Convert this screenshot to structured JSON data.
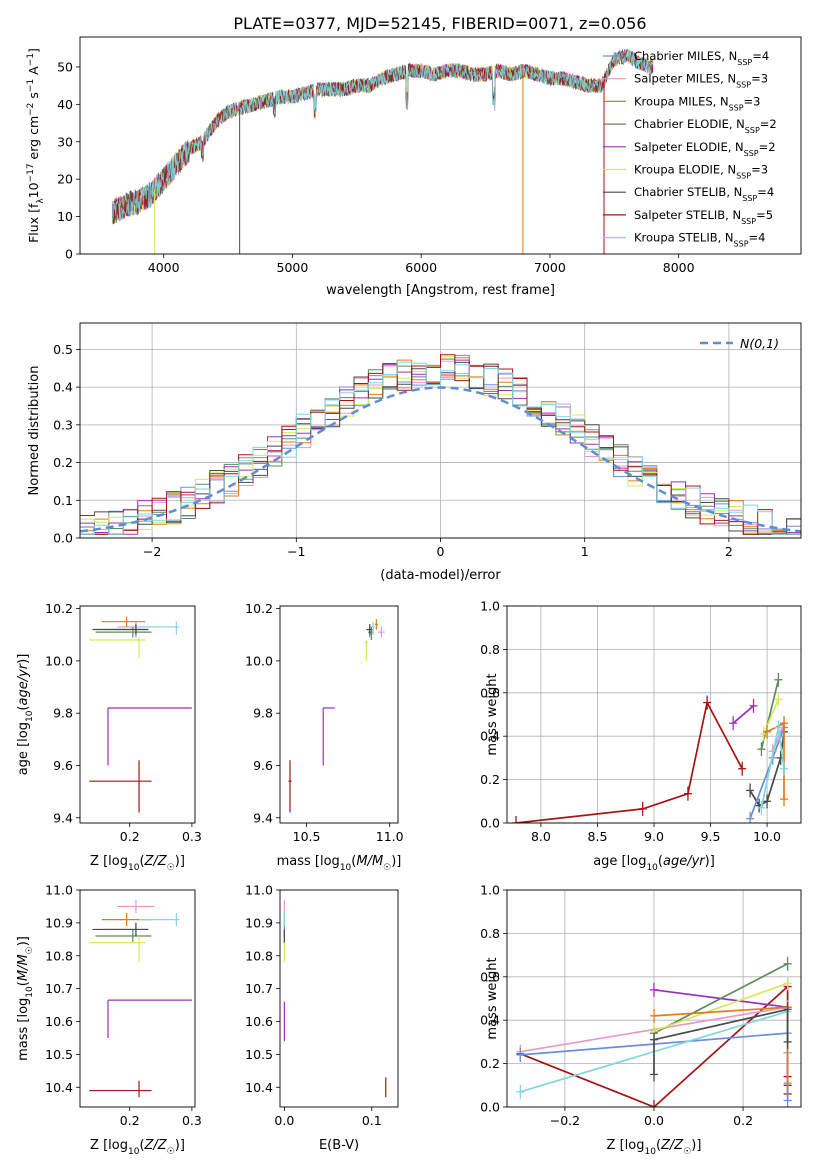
{
  "figure": {
    "title": "PLATE=0377, MJD=52145, FIBERID=0071, z=0.056"
  },
  "colors": {
    "Chabrier MILES": "#6a8fd8",
    "Salpeter MILES": "#e69ac6",
    "Kroupa MILES": "#e07b1a",
    "Chabrier ELODIE": "#5c8a5c",
    "Salpeter ELODIE": "#9b30b8",
    "Kroupa ELODIE": "#d7e85a",
    "Chabrier STELIB": "#4a4a4a",
    "Salpeter STELIB": "#a31515",
    "Kroupa STELIB": "#7fd6e0",
    "normal": "#5b8ed6"
  },
  "chart_data": [
    {
      "type": "line",
      "title": "PLATE=0377, MJD=52145, FIBERID=0071, z=0.056",
      "xlabel": "wavelength [Angstrom, rest frame]",
      "ylabel": "Flux [f",
      "xlim": [
        3350,
        8950
      ],
      "ylim": [
        0,
        58
      ],
      "xticks": [
        4000,
        5000,
        6000,
        7000,
        8000
      ],
      "yticks": [
        0,
        10,
        20,
        30,
        40,
        50
      ],
      "grid": false,
      "legend_position": "right",
      "legend": [
        {
          "name": "Chabrier MILES",
          "nssp": "4"
        },
        {
          "name": "Salpeter MILES",
          "nssp": "3"
        },
        {
          "name": "Kroupa MILES",
          "nssp": "3"
        },
        {
          "name": "Chabrier ELODIE",
          "nssp": "2"
        },
        {
          "name": "Salpeter ELODIE",
          "nssp": "2"
        },
        {
          "name": "Kroupa ELODIE",
          "nssp": "3"
        },
        {
          "name": "Chabrier STELIB",
          "nssp": "4"
        },
        {
          "name": "Salpeter STELIB",
          "nssp": "5"
        },
        {
          "name": "Kroupa STELIB",
          "nssp": "4"
        }
      ],
      "continuum": [
        [
          3600,
          11
        ],
        [
          3700,
          13
        ],
        [
          3800,
          14
        ],
        [
          3900,
          16
        ],
        [
          4000,
          20
        ],
        [
          4100,
          24
        ],
        [
          4200,
          28
        ],
        [
          4300,
          30
        ],
        [
          4400,
          35
        ],
        [
          4500,
          38
        ],
        [
          4600,
          39
        ],
        [
          4700,
          40
        ],
        [
          4800,
          41
        ],
        [
          4900,
          42
        ],
        [
          5000,
          42
        ],
        [
          5100,
          43
        ],
        [
          5200,
          44
        ],
        [
          5300,
          44
        ],
        [
          5400,
          44
        ],
        [
          5500,
          45
        ],
        [
          5600,
          45
        ],
        [
          5700,
          47
        ],
        [
          5800,
          48
        ],
        [
          5900,
          49
        ],
        [
          6000,
          49
        ],
        [
          6100,
          48
        ],
        [
          6200,
          49
        ],
        [
          6300,
          49
        ],
        [
          6400,
          48
        ],
        [
          6500,
          48
        ],
        [
          6600,
          49
        ],
        [
          6700,
          48
        ],
        [
          6800,
          49
        ],
        [
          6900,
          48
        ],
        [
          7000,
          47
        ],
        [
          7100,
          47
        ],
        [
          7200,
          46
        ],
        [
          7300,
          45
        ],
        [
          7400,
          45
        ],
        [
          7500,
          52
        ],
        [
          7600,
          53
        ],
        [
          7700,
          51
        ],
        [
          7800,
          50
        ]
      ],
      "absorption_features": [
        [
          3935,
          34
        ],
        [
          3970,
          32
        ],
        [
          4300,
          26
        ],
        [
          4861,
          38
        ],
        [
          5175,
          38
        ],
        [
          5890,
          40
        ],
        [
          6563,
          40
        ]
      ],
      "spikes_to_zero": [
        3930,
        4590,
        6790,
        7420
      ]
    },
    {
      "type": "step",
      "xlabel": "(data-model)/error",
      "ylabel": "Normed distribution",
      "xlim": [
        -2.5,
        2.5
      ],
      "ylim": [
        0,
        0.57
      ],
      "xticks": [
        -2,
        -1,
        0,
        1,
        2
      ],
      "yticks": [
        0.0,
        0.1,
        0.2,
        0.3,
        0.4,
        0.5
      ],
      "grid": true,
      "legend_position": "top-right",
      "normal_label": "N(0,1)",
      "bin_width": 0.1
    },
    {
      "type": "scatter-errorbar",
      "xlabel": "Z [log10(Z/Z☉)]",
      "ylabel": "age  [log10(age/yr)]",
      "xlim": [
        0.12,
        0.305
      ],
      "ylim": [
        9.38,
        10.21
      ],
      "xticks": [
        0.2,
        0.3
      ],
      "yticks": [
        9.4,
        9.6,
        9.8,
        10.0,
        10.2
      ],
      "points": [
        {
          "series": "Chabrier MILES",
          "x": 0.21,
          "y": 10.12,
          "xerr": [
            0.05,
            0.02
          ],
          "yerr": [
            0.03,
            0.02
          ]
        },
        {
          "series": "Salpeter MILES",
          "x": 0.21,
          "y": 10.13,
          "xerr": [
            0.03,
            0.03
          ],
          "yerr": [
            0.02,
            0.02
          ]
        },
        {
          "series": "Kroupa MILES",
          "x": 0.195,
          "y": 10.15,
          "xerr": [
            0.04,
            0.03
          ],
          "yerr": [
            0.02,
            0.02
          ]
        },
        {
          "series": "Chabrier ELODIE",
          "x": 0.205,
          "y": 10.11,
          "xerr": [
            0.06,
            0.03
          ],
          "yerr": [
            0.02,
            0.02
          ]
        },
        {
          "series": "Salpeter ELODIE",
          "x": 0.165,
          "y": 9.82,
          "xerr": [
            0.0,
            0.135
          ],
          "yerr": [
            0.22,
            0.0
          ]
        },
        {
          "series": "Kroupa ELODIE",
          "x": 0.215,
          "y": 10.08,
          "xerr": [
            0.08,
            0.01
          ],
          "yerr": [
            0.07,
            0.01
          ]
        },
        {
          "series": "Chabrier STELIB",
          "x": 0.21,
          "y": 10.12,
          "xerr": [
            0.07,
            0.02
          ],
          "yerr": [
            0.02,
            0.02
          ]
        },
        {
          "series": "Salpeter STELIB",
          "x": 0.215,
          "y": 9.54,
          "xerr": [
            0.08,
            0.02
          ],
          "yerr": [
            0.12,
            0.08
          ]
        },
        {
          "series": "Kroupa STELIB",
          "x": 0.275,
          "y": 10.13,
          "xerr": [
            0.06,
            0.005
          ],
          "yerr": [
            0.03,
            0.02
          ]
        }
      ]
    },
    {
      "type": "scatter-errorbar",
      "xlabel": "mass [log10(M/M☉)]",
      "ylabel": "",
      "xlim": [
        10.34,
        11.05
      ],
      "ylim": [
        9.38,
        10.21
      ],
      "xticks": [
        10.5,
        11.0
      ],
      "yticks": [
        9.4,
        9.6,
        9.8,
        10.0,
        10.2
      ],
      "points": [
        {
          "series": "Chabrier MILES",
          "x": 10.88,
          "y": 10.12,
          "xerr": [
            0.02,
            0.02
          ],
          "yerr": [
            0.03,
            0.02
          ]
        },
        {
          "series": "Salpeter MILES",
          "x": 10.95,
          "y": 10.11,
          "xerr": [
            0.02,
            0.02
          ],
          "yerr": [
            0.02,
            0.02
          ]
        },
        {
          "series": "Kroupa MILES",
          "x": 10.92,
          "y": 10.14,
          "xerr": [
            0.01,
            0.01
          ],
          "yerr": [
            0.02,
            0.02
          ]
        },
        {
          "series": "Chabrier ELODIE",
          "x": 10.89,
          "y": 10.11,
          "xerr": [
            0.02,
            0.01
          ],
          "yerr": [
            0.03,
            0.02
          ]
        },
        {
          "series": "Salpeter ELODIE",
          "x": 10.6,
          "y": 9.82,
          "xerr": [
            0.0,
            0.07
          ],
          "yerr": [
            0.22,
            0.0
          ]
        },
        {
          "series": "Kroupa ELODIE",
          "x": 10.86,
          "y": 10.07,
          "xerr": [
            0.01,
            0.01
          ],
          "yerr": [
            0.07,
            0.01
          ]
        },
        {
          "series": "Chabrier STELIB",
          "x": 10.88,
          "y": 10.12,
          "xerr": [
            0.02,
            0.01
          ],
          "yerr": [
            0.02,
            0.02
          ]
        },
        {
          "series": "Salpeter STELIB",
          "x": 10.4,
          "y": 9.54,
          "xerr": [
            0.01,
            0.01
          ],
          "yerr": [
            0.12,
            0.08
          ]
        },
        {
          "series": "Kroupa STELIB",
          "x": 10.9,
          "y": 10.13,
          "xerr": [
            0.01,
            0.01
          ],
          "yerr": [
            0.03,
            0.02
          ]
        }
      ]
    },
    {
      "type": "line-errorbar",
      "xlabel": "age  [log10(age/yr)]",
      "ylabel": "mass weight",
      "xlim": [
        7.7,
        10.3
      ],
      "ylim": [
        0,
        1.0
      ],
      "xticks": [
        8.0,
        8.5,
        9.0,
        9.5,
        10.0
      ],
      "yticks": [
        0.0,
        0.2,
        0.4,
        0.6,
        0.8,
        1.0
      ],
      "grid": true,
      "series": [
        {
          "name": "Salpeter STELIB",
          "x": [
            7.78,
            8.9,
            9.3,
            9.47,
            9.78
          ],
          "y": [
            0.0,
            0.065,
            0.135,
            0.555,
            0.25
          ]
        },
        {
          "name": "Salpeter ELODIE",
          "x": [
            9.7,
            9.88
          ],
          "y": [
            0.46,
            0.54
          ]
        },
        {
          "name": "Chabrier STELIB",
          "x": [
            9.85,
            9.93,
            10.0,
            10.12,
            10.15
          ],
          "y": [
            0.15,
            0.08,
            0.1,
            0.3,
            0.42
          ]
        },
        {
          "name": "Chabrier ELODIE",
          "x": [
            9.95,
            10.1
          ],
          "y": [
            0.34,
            0.66
          ]
        },
        {
          "name": "Kroupa ELODIE",
          "x": [
            9.97,
            10.1
          ],
          "y": [
            0.41,
            0.57
          ]
        },
        {
          "name": "Chabrier MILES",
          "x": [
            9.85,
            10.05,
            10.15
          ],
          "y": [
            0.02,
            0.3,
            0.44
          ]
        },
        {
          "name": "Salpeter MILES",
          "x": [
            10.05,
            10.15
          ],
          "y": [
            0.33,
            0.46
          ]
        },
        {
          "name": "Kroupa MILES",
          "x": [
            10.0,
            10.15,
            10.15
          ],
          "y": [
            0.42,
            0.46,
            0.11
          ]
        },
        {
          "name": "Kroupa STELIB",
          "x": [
            9.95,
            10.1,
            10.15
          ],
          "y": [
            0.07,
            0.44,
            0.25
          ]
        }
      ]
    },
    {
      "type": "scatter-errorbar",
      "xlabel": "Z [log10(Z/Z☉)]",
      "ylabel": "mass [log10(M/M☉)]",
      "xlim": [
        0.12,
        0.305
      ],
      "ylim": [
        10.34,
        11.0
      ],
      "xticks": [
        0.2,
        0.3
      ],
      "yticks": [
        10.4,
        10.5,
        10.6,
        10.7,
        10.8,
        10.9,
        11.0
      ],
      "points": [
        {
          "series": "Chabrier MILES",
          "x": 0.21,
          "y": 10.88,
          "xerr": [
            0.05,
            0.02
          ],
          "yerr": [
            0.02,
            0.02
          ]
        },
        {
          "series": "Salpeter MILES",
          "x": 0.21,
          "y": 10.95,
          "xerr": [
            0.03,
            0.03
          ],
          "yerr": [
            0.02,
            0.02
          ]
        },
        {
          "series": "Kroupa MILES",
          "x": 0.195,
          "y": 10.91,
          "xerr": [
            0.04,
            0.04
          ],
          "yerr": [
            0.02,
            0.02
          ]
        },
        {
          "series": "Chabrier ELODIE",
          "x": 0.205,
          "y": 10.86,
          "xerr": [
            0.06,
            0.03
          ],
          "yerr": [
            0.02,
            0.02
          ]
        },
        {
          "series": "Salpeter ELODIE",
          "x": 0.165,
          "y": 10.665,
          "xerr": [
            0.0,
            0.135
          ],
          "yerr": [
            0.115,
            0.0
          ]
        },
        {
          "series": "Kroupa ELODIE",
          "x": 0.215,
          "y": 10.84,
          "xerr": [
            0.08,
            0.01
          ],
          "yerr": [
            0.06,
            0.02
          ]
        },
        {
          "series": "Chabrier STELIB",
          "x": 0.21,
          "y": 10.88,
          "xerr": [
            0.07,
            0.02
          ],
          "yerr": [
            0.02,
            0.02
          ]
        },
        {
          "series": "Salpeter STELIB",
          "x": 0.215,
          "y": 10.39,
          "xerr": [
            0.08,
            0.02
          ],
          "yerr": [
            0.02,
            0.03
          ]
        },
        {
          "series": "Kroupa STELIB",
          "x": 0.275,
          "y": 10.91,
          "xerr": [
            0.06,
            0.005
          ],
          "yerr": [
            0.02,
            0.02
          ]
        }
      ]
    },
    {
      "type": "scatter-errorbar",
      "xlabel": "E(B-V)",
      "ylabel": "",
      "xlim": [
        -0.005,
        0.13
      ],
      "ylim": [
        10.34,
        11.0
      ],
      "xticks": [
        0.0,
        0.1
      ],
      "yticks": [
        10.4,
        10.5,
        10.6,
        10.7,
        10.8,
        10.9,
        11.0
      ],
      "points": [
        {
          "series": "Chabrier MILES",
          "x": 0.0,
          "y": 10.88,
          "xerr": [
            0,
            0
          ],
          "yerr": [
            0.02,
            0.02
          ]
        },
        {
          "series": "Salpeter MILES",
          "x": 0.0,
          "y": 10.95,
          "xerr": [
            0,
            0
          ],
          "yerr": [
            0.02,
            0.02
          ]
        },
        {
          "series": "Kroupa MILES",
          "x": 0.0,
          "y": 10.91,
          "xerr": [
            0,
            0
          ],
          "yerr": [
            0.02,
            0.02
          ]
        },
        {
          "series": "Chabrier ELODIE",
          "x": 0.0,
          "y": 10.86,
          "xerr": [
            0,
            0
          ],
          "yerr": [
            0.02,
            0.02
          ]
        },
        {
          "series": "Salpeter ELODIE",
          "x": 0.0,
          "y": 10.6,
          "xerr": [
            0,
            0
          ],
          "yerr": [
            0.06,
            0.06
          ]
        },
        {
          "series": "Kroupa ELODIE",
          "x": 0.0,
          "y": 10.82,
          "xerr": [
            0,
            0
          ],
          "yerr": [
            0.04,
            0.04
          ]
        },
        {
          "series": "Chabrier STELIB",
          "x": 0.0,
          "y": 10.86,
          "xerr": [
            0,
            0
          ],
          "yerr": [
            0.02,
            0.02
          ]
        },
        {
          "series": "Salpeter STELIB",
          "x": 0.116,
          "y": 10.4,
          "xerr": [
            0,
            0
          ],
          "yerr": [
            0.03,
            0.03
          ]
        },
        {
          "series": "Kroupa STELIB",
          "x": 0.0,
          "y": 10.91,
          "xerr": [
            0,
            0
          ],
          "yerr": [
            0.02,
            0.02
          ]
        }
      ]
    },
    {
      "type": "line-errorbar",
      "xlabel": "Z [log10(Z/Z☉)]",
      "ylabel": "mass weight",
      "xlim": [
        -0.33,
        0.33
      ],
      "ylim": [
        0,
        1.0
      ],
      "xticks": [
        -0.2,
        0.0,
        0.2
      ],
      "yticks": [
        0.0,
        0.2,
        0.4,
        0.6,
        0.8,
        1.0
      ],
      "grid": true,
      "series": [
        {
          "name": "Salpeter STELIB",
          "x": [
            -0.3,
            0.0,
            0.3,
            0.3,
            0.3,
            0.3,
            0.3
          ],
          "y": [
            0.245,
            0.0,
            0.555,
            0.25,
            0.14,
            0.1,
            0.06
          ]
        },
        {
          "name": "Salpeter MILES",
          "x": [
            -0.3,
            0.3
          ],
          "y": [
            0.255,
            0.46
          ]
        },
        {
          "name": "Chabrier MILES",
          "x": [
            -0.3,
            0.3,
            0.3
          ],
          "y": [
            0.24,
            0.34,
            0.03
          ]
        },
        {
          "name": "Kroupa STELIB",
          "x": [
            -0.3,
            0.3,
            0.3
          ],
          "y": [
            0.07,
            0.44,
            0.25
          ]
        },
        {
          "name": "Salpeter ELODIE",
          "x": [
            0.0,
            0.3
          ],
          "y": [
            0.54,
            0.46
          ]
        },
        {
          "name": "Chabrier ELODIE",
          "x": [
            0.0,
            0.3
          ],
          "y": [
            0.34,
            0.66
          ]
        },
        {
          "name": "Kroupa ELODIE",
          "x": [
            0.0,
            0.3
          ],
          "y": [
            0.35,
            0.57
          ]
        },
        {
          "name": "Kroupa MILES",
          "x": [
            0.0,
            0.3,
            0.3
          ],
          "y": [
            0.42,
            0.46,
            0.11
          ]
        },
        {
          "name": "Chabrier STELIB",
          "x": [
            0.0,
            0.0,
            0.3,
            0.3
          ],
          "y": [
            0.15,
            0.31,
            0.45,
            0.3
          ]
        }
      ]
    }
  ]
}
